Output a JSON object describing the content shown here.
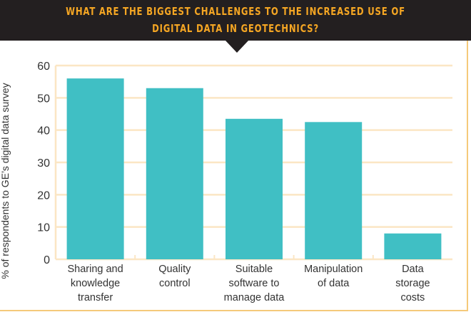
{
  "chart_data": {
    "type": "bar",
    "title": "WHAT ARE THE BIGGEST CHALLENGES TO THE INCREASED USE OF\nDIGITAL DATA IN GEOTECHNICS?",
    "ylabel": "% of respondents to GE’s digital data survey",
    "xlabel": "",
    "ylim": [
      0,
      60
    ],
    "yticks": [
      "0",
      "10",
      "20",
      "30",
      "40",
      "50",
      "60"
    ],
    "grid": true,
    "categories": [
      [
        "Sharing and",
        "knowledge",
        "transfer"
      ],
      [
        "Quality",
        "control"
      ],
      [
        "Suitable",
        "software to",
        "manage data"
      ],
      [
        "Manipulation",
        "of data"
      ],
      [
        "Data",
        "storage",
        "costs"
      ]
    ],
    "values": [
      56,
      53,
      43.5,
      42.5,
      8
    ],
    "colors": {
      "bar": "#40bfc4",
      "grid": "#fbe6c4",
      "header": "#231f20",
      "title": "#f5a623"
    }
  }
}
